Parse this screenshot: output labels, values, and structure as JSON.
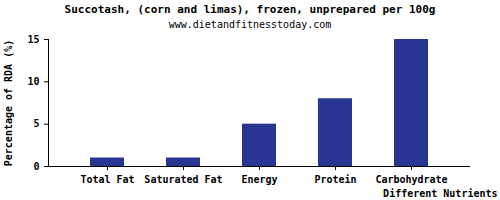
{
  "chart_data": {
    "type": "bar",
    "title": "Succotash, (corn and limas), frozen, unprepared per 100g",
    "subtitle": "www.dietandfitnesstoday.com",
    "x_label": "Different Nutrients",
    "y_label": "Percentage of RDA (%)",
    "categories": [
      "Total Fat",
      "Saturated Fat",
      "Energy",
      "Protein",
      "Carbohydrate"
    ],
    "values": [
      1,
      1,
      5,
      8,
      15
    ],
    "color": "#283593",
    "ylim": [
      0,
      15
    ],
    "yticks": [
      0,
      5,
      10,
      15
    ],
    "grid": false
  }
}
